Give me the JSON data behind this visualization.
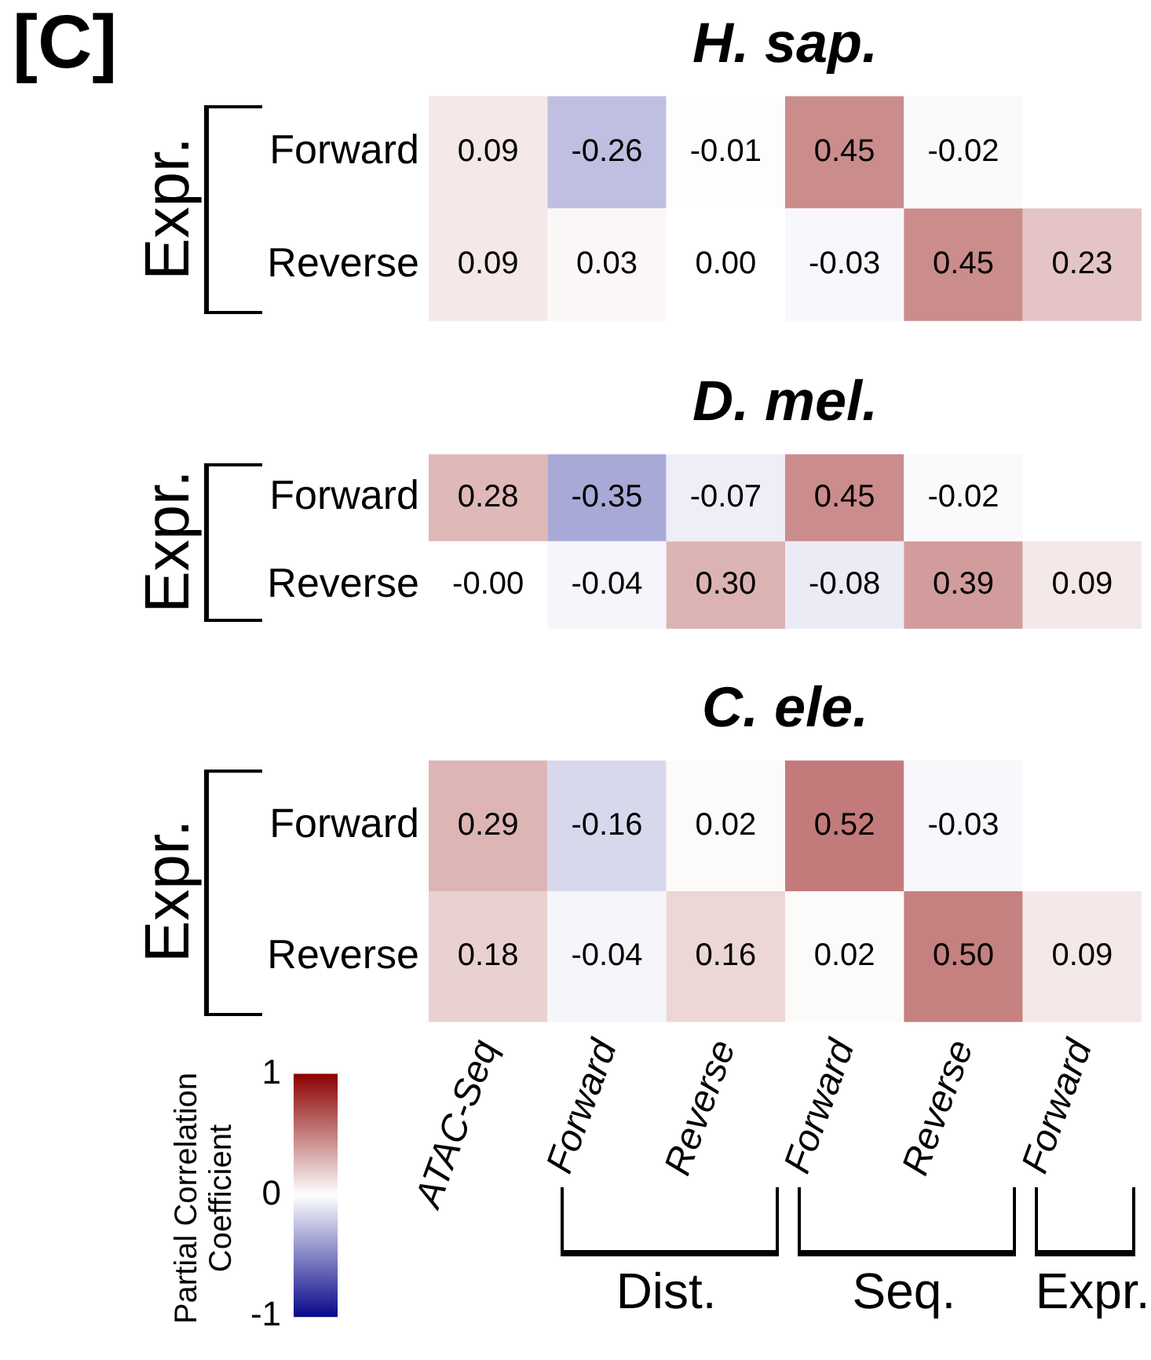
{
  "chart_data": [
    {
      "type": "heatmap",
      "title": "H. sap.",
      "ylabel": "Expr.",
      "annotations": [
        "[C]"
      ],
      "tick_labels": "y",
      "categories": [
        null,
        null,
        null,
        null,
        null,
        null
      ],
      "y_categories": [
        "Forward",
        "Reverse"
      ],
      "cells": [
        [
          0.09,
          -0.26,
          -0.01,
          0.45,
          -0.02,
          null
        ],
        [
          0.09,
          0.03,
          0.0,
          -0.03,
          0.45,
          0.23
        ]
      ],
      "cell_labels": [
        [
          "0.09",
          "-0.26",
          "-0.01",
          "0.45",
          "-0.02",
          null
        ],
        [
          "0.09",
          "0.03",
          "0.00",
          "-0.03",
          "0.45",
          "0.23"
        ]
      ]
    },
    {
      "type": "heatmap",
      "title": "D. mel.",
      "ylabel": "Expr.",
      "tick_labels": "y",
      "categories": [
        null,
        null,
        null,
        null,
        null,
        null
      ],
      "y_categories": [
        "Forward",
        "Reverse"
      ],
      "cells": [
        [
          0.28,
          -0.35,
          -0.07,
          0.45,
          -0.02,
          null
        ],
        [
          0.0,
          -0.04,
          0.3,
          -0.08,
          0.39,
          0.09
        ]
      ],
      "cell_labels": [
        [
          "0.28",
          "-0.35",
          "-0.07",
          "0.45",
          "-0.02",
          null
        ],
        [
          "-0.00",
          "-0.04",
          "0.30",
          "-0.08",
          "0.39",
          "0.09"
        ]
      ]
    },
    {
      "type": "heatmap",
      "title": "C. ele.",
      "ylabel": "Expr.",
      "annotations": [
        "Dist.",
        "Seq.",
        "Expr."
      ],
      "categories": [
        "ATAC-Seq",
        "Forward",
        "Reverse",
        "Forward",
        "Reverse",
        "Forward"
      ],
      "y_categories": [
        "Forward",
        "Reverse"
      ],
      "cells": [
        [
          0.29,
          -0.16,
          0.02,
          0.52,
          -0.03,
          null
        ],
        [
          0.18,
          -0.04,
          0.16,
          0.02,
          0.5,
          0.09
        ]
      ],
      "cell_labels": [
        [
          "0.29",
          "-0.16",
          "0.02",
          "0.52",
          "-0.03",
          null
        ],
        [
          "0.18",
          "-0.04",
          "0.16",
          "0.02",
          "0.50",
          "0.09"
        ]
      ],
      "clim": [
        -1,
        1
      ],
      "cticks": [
        -1,
        0,
        1
      ],
      "clabel": "Partial Correlation Coefficient"
    }
  ]
}
